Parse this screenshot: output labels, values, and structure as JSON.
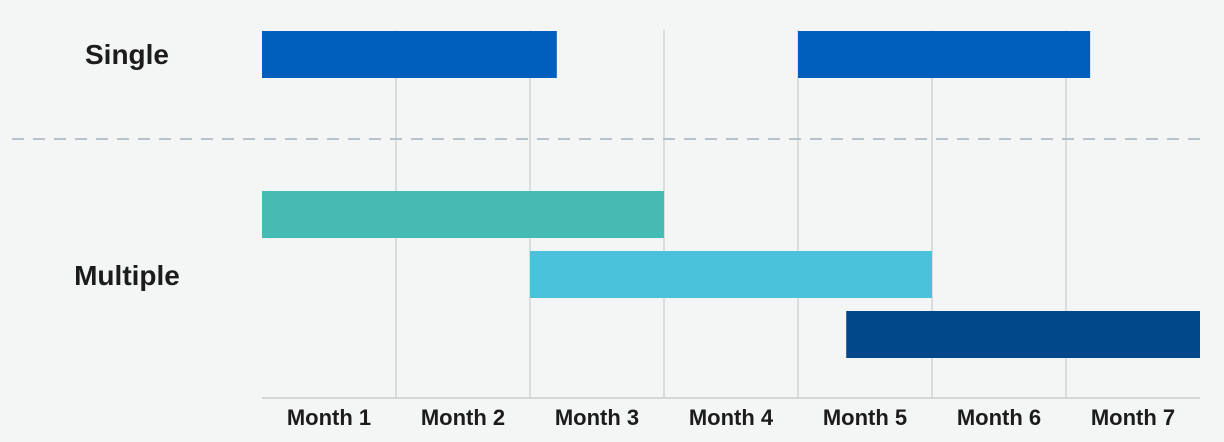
{
  "chart_data": {
    "type": "gantt",
    "categories": [
      "Month 1",
      "Month 2",
      "Month 3",
      "Month 4",
      "Month 5",
      "Month 6",
      "Month 7"
    ],
    "x_range": [
      0,
      7
    ],
    "grid": true,
    "groups": [
      {
        "label": "Single",
        "bars": [
          {
            "start": 0.0,
            "end": 2.2,
            "color": "#005ebd"
          },
          {
            "start": 4.0,
            "end": 6.18,
            "color": "#005ebd"
          }
        ]
      },
      {
        "label": "Multiple",
        "bars": [
          {
            "start": 0.0,
            "end": 3.0,
            "color": "#46bbb4"
          },
          {
            "start": 2.0,
            "end": 5.0,
            "color": "#4ac2db"
          },
          {
            "start": 4.36,
            "end": 7.0,
            "color": "#00488a"
          }
        ]
      }
    ],
    "separator": "dashed"
  }
}
